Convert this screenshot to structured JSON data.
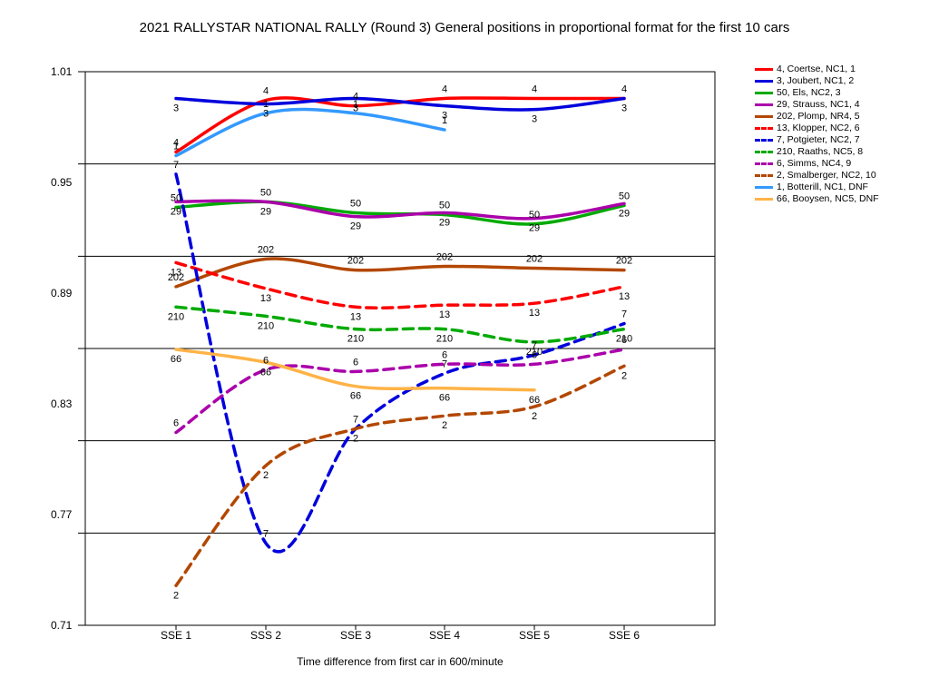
{
  "chart_data": {
    "type": "line",
    "title": "2021 RALLYSTAR NATIONAL  RALLY (Round 3)  General positions in proportional format for the first 10 cars",
    "xlabel": "Time difference from first car in 600/minute",
    "ylabel": "",
    "categories": [
      "SSE 1",
      "SSS 2",
      "SSE 3",
      "SSE 4",
      "SSE 5",
      "SSE 6"
    ],
    "yticks": [
      "1.01",
      "0.95",
      "0.89",
      "0.83",
      "0.77",
      "0.71"
    ],
    "ylim": [
      0.71,
      1.01
    ],
    "grid": "horizontal",
    "legend_position": "right",
    "series": [
      {
        "name": "4, Coertse, NC1, 1",
        "label": "4",
        "color": "#ff0000",
        "dash": false,
        "values": [
          0.9665,
          0.9945,
          0.9915,
          0.9955,
          0.9955,
          0.9955
        ]
      },
      {
        "name": "3, Joubert, NC1, 2",
        "label": "3",
        "color": "#0000dd",
        "dash": false,
        "values": [
          0.9955,
          0.9925,
          0.9955,
          0.9915,
          0.9895,
          0.9955
        ]
      },
      {
        "name": "50, Els, NC2, 3",
        "label": "50",
        "color": "#00aa00",
        "dash": false,
        "values": [
          0.9365,
          0.9395,
          0.9335,
          0.9325,
          0.9275,
          0.9375
        ]
      },
      {
        "name": "29, Strauss, NC1, 4",
        "label": "29",
        "color": "#aa00aa",
        "dash": false,
        "values": [
          0.9395,
          0.9395,
          0.9315,
          0.9335,
          0.9305,
          0.9385
        ]
      },
      {
        "name": "202, Plomp, NR4, 5",
        "label": "202",
        "color": "#b34700",
        "dash": false,
        "values": [
          0.8935,
          0.9085,
          0.9025,
          0.9045,
          0.9035,
          0.9025
        ]
      },
      {
        "name": "13, Klopper, NC2, 6",
        "label": "13",
        "color": "#ff0000",
        "dash": true,
        "values": [
          0.9065,
          0.8925,
          0.8825,
          0.8835,
          0.8845,
          0.8935
        ]
      },
      {
        "name": "7, Potgieter, NC2, 7",
        "label": "7",
        "color": "#0000dd",
        "dash": true,
        "values": [
          0.9545,
          0.7545,
          0.8165,
          0.8465,
          0.8565,
          0.8735
        ]
      },
      {
        "name": "210, Raaths, NC5, 8",
        "label": "210",
        "color": "#00aa00",
        "dash": true,
        "values": [
          0.8825,
          0.8775,
          0.8705,
          0.8705,
          0.8635,
          0.8705
        ]
      },
      {
        "name": "6, Simms, NC4, 9",
        "label": "6",
        "color": "#aa00aa",
        "dash": true,
        "values": [
          0.8145,
          0.8485,
          0.8475,
          0.8515,
          0.8515,
          0.8595
        ]
      },
      {
        "name": "2, Smalberger, NC2, 10",
        "label": "2",
        "color": "#b34700",
        "dash": true,
        "values": [
          0.7315,
          0.7965,
          0.8165,
          0.8235,
          0.8285,
          0.8505
        ]
      },
      {
        "name": "1, Botterill, NC1, DNF",
        "label": "1",
        "color": "#3399ff",
        "dash": false,
        "values": [
          0.9645,
          0.9875,
          0.9875,
          0.9785,
          null,
          null
        ]
      },
      {
        "name": "66, Booysen, NC5, DNF",
        "label": "66",
        "color": "#ffb347",
        "dash": false,
        "values": [
          0.8595,
          0.8525,
          0.8395,
          0.8385,
          0.8375,
          null
        ]
      }
    ]
  }
}
